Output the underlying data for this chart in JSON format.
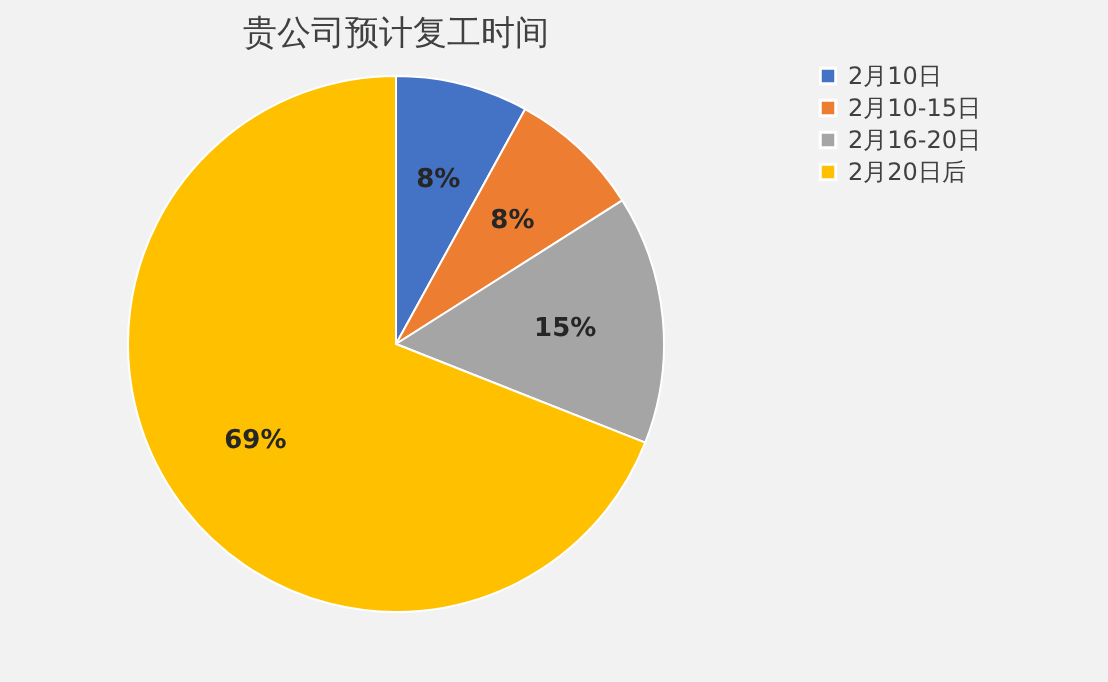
{
  "chart_data": {
    "type": "pie",
    "title": "贵公司预计复工时间",
    "categories": [
      "2月10日",
      "2月10-15日",
      "2月16-20日",
      "2月20日后"
    ],
    "values": [
      8,
      8,
      15,
      69
    ],
    "colors": [
      "#4472c4",
      "#ed7d31",
      "#a5a5a5",
      "#ffc000"
    ],
    "value_labels": [
      "8%",
      "8%",
      "15%",
      "69%"
    ],
    "legend": "right"
  }
}
